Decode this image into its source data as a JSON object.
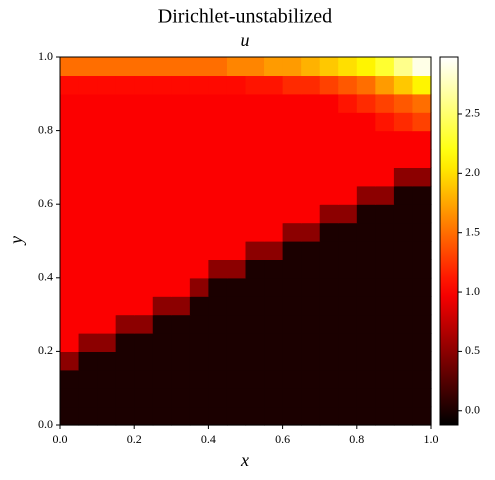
{
  "chart_data": {
    "type": "heatmap",
    "title": "Dirichlet-unstabilized",
    "subtitle": "u",
    "x_label": "x",
    "y_label": "y",
    "xlim": [
      0,
      1
    ],
    "ylim": [
      0,
      1
    ],
    "xticks": [
      {
        "value": 0,
        "label": "0.0"
      },
      {
        "value": 0.2,
        "label": "0.2"
      },
      {
        "value": 0.4,
        "label": "0.4"
      },
      {
        "value": 0.6,
        "label": "0.6"
      },
      {
        "value": 0.8,
        "label": "0.8"
      },
      {
        "value": 1,
        "label": "1.0"
      }
    ],
    "yticks": [
      {
        "value": 0,
        "label": "0.0"
      },
      {
        "value": 0.2,
        "label": "0.2"
      },
      {
        "value": 0.4,
        "label": "0.4"
      },
      {
        "value": 0.6,
        "label": "0.6"
      },
      {
        "value": 0.8,
        "label": "0.8"
      },
      {
        "value": 1,
        "label": "1.0"
      }
    ],
    "colormap": "hot",
    "clim": [
      -0.12,
      2.98
    ],
    "cticks": [
      {
        "value": 0,
        "label": "0.0"
      },
      {
        "value": 0.5,
        "label": "0.5"
      },
      {
        "value": 1,
        "label": "1.0"
      },
      {
        "value": 1.5,
        "label": "1.5"
      },
      {
        "value": 2,
        "label": "2.0"
      },
      {
        "value": 2.5,
        "label": "2.5"
      }
    ],
    "z": [
      [
        0,
        0,
        0,
        0,
        0,
        0,
        0,
        0,
        0,
        0,
        0,
        0,
        0,
        0,
        0,
        0,
        0,
        0,
        0,
        0
      ],
      [
        0,
        0,
        0,
        0,
        0,
        0,
        0,
        0,
        0,
        0,
        0,
        0,
        0,
        0,
        0,
        0,
        0,
        0,
        0,
        0
      ],
      [
        0,
        0,
        0,
        0,
        0,
        0,
        0,
        0,
        0,
        0,
        0,
        0,
        0,
        0,
        0,
        0,
        0,
        0,
        0,
        0
      ],
      [
        0.5,
        0,
        0,
        0,
        0,
        0,
        0,
        0,
        0,
        0,
        0,
        0,
        0,
        0,
        0,
        0,
        0,
        0,
        0,
        0
      ],
      [
        1,
        0.5,
        0.5,
        0,
        0,
        0,
        0,
        0,
        0,
        0,
        0,
        0,
        0,
        0,
        0,
        0,
        0,
        0,
        0,
        0
      ],
      [
        1,
        1,
        1,
        0.5,
        0.5,
        0,
        0,
        0,
        0,
        0,
        0,
        0,
        0,
        0,
        0,
        0,
        0,
        0,
        0,
        0
      ],
      [
        1,
        1,
        1,
        1,
        1,
        0.5,
        0.5,
        0,
        0,
        0,
        0,
        0,
        0,
        0,
        0,
        0,
        0,
        0,
        0,
        0
      ],
      [
        1,
        1,
        1,
        1,
        1,
        1,
        1,
        0.5,
        0,
        0,
        0,
        0,
        0,
        0,
        0,
        0,
        0,
        0,
        0,
        0
      ],
      [
        1,
        1,
        1,
        1,
        1,
        1,
        1,
        1,
        0.5,
        0.5,
        0,
        0,
        0,
        0,
        0,
        0,
        0,
        0,
        0,
        0
      ],
      [
        1,
        1,
        1,
        1,
        1,
        1,
        1,
        1,
        1,
        1,
        0.5,
        0.5,
        0,
        0,
        0,
        0,
        0,
        0,
        0,
        0
      ],
      [
        1,
        1,
        1,
        1,
        1,
        1,
        1,
        1,
        1,
        1,
        1,
        1,
        0.5,
        0.5,
        0,
        0,
        0,
        0,
        0,
        0
      ],
      [
        1,
        1,
        1,
        1,
        1,
        1,
        1,
        1,
        1,
        1,
        1,
        1,
        1,
        1,
        0.5,
        0.5,
        0,
        0,
        0,
        0
      ],
      [
        1,
        1,
        1,
        1,
        1,
        1,
        1,
        1,
        1,
        1,
        1,
        1,
        1,
        1,
        1,
        1,
        0.5,
        0.5,
        0,
        0
      ],
      [
        1,
        1,
        1,
        1,
        1,
        1,
        1,
        1,
        1,
        1,
        1,
        1,
        1,
        1,
        1,
        1,
        1,
        1,
        0.5,
        0.5
      ],
      [
        1,
        1,
        1,
        1,
        1,
        1,
        1,
        1,
        1,
        1,
        1,
        1,
        1,
        1,
        1,
        1,
        1,
        1,
        1,
        1
      ],
      [
        1,
        1,
        1,
        1,
        1,
        1,
        1,
        1,
        1,
        1,
        1,
        1,
        1,
        1,
        1,
        1,
        1,
        1,
        1,
        1
      ],
      [
        1,
        1,
        1,
        1,
        1,
        1,
        1,
        1,
        1,
        1,
        1,
        1,
        1,
        1,
        1,
        1,
        1,
        1.1,
        1.2,
        1.3
      ],
      [
        1,
        1,
        1,
        1,
        1,
        1,
        1,
        1,
        1,
        1,
        1,
        1,
        1,
        1,
        1,
        1.1,
        1.2,
        1.3,
        1.4,
        1.5
      ],
      [
        1.05,
        1.05,
        1.05,
        1.05,
        1.05,
        1.05,
        1.05,
        1.05,
        1.05,
        1.05,
        1.1,
        1.1,
        1.2,
        1.2,
        1.3,
        1.4,
        1.5,
        1.7,
        1.9,
        2.1
      ],
      [
        1.5,
        1.5,
        1.5,
        1.5,
        1.5,
        1.5,
        1.5,
        1.5,
        1.5,
        1.6,
        1.6,
        1.7,
        1.7,
        1.8,
        1.9,
        2.0,
        2.1,
        2.3,
        2.6,
        2.9
      ]
    ]
  }
}
